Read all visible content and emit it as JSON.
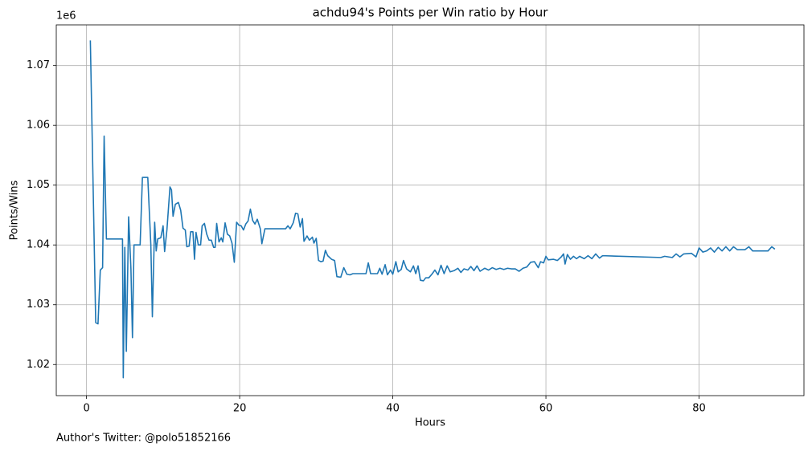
{
  "chart_data": {
    "type": "line",
    "title": "achdu94's Points per Win ratio by Hour",
    "x_label": "Hours",
    "y_label": "Points/Wins",
    "y_offset_label": "1e6",
    "footer": "Author's Twitter: @polo51852166",
    "grid": true,
    "xlim": [
      -3.95,
      93.7
    ],
    "ylim": [
      1.0148,
      1.0768
    ],
    "xticks": [
      0,
      20,
      40,
      60,
      80
    ],
    "yticks": [
      1.02,
      1.03,
      1.04,
      1.05,
      1.06,
      1.07
    ],
    "x": [
      0.5,
      1.2,
      1.5,
      1.8,
      2.1,
      2.3,
      2.6,
      3.0,
      4.7,
      4.8,
      5.0,
      5.2,
      5.5,
      5.8,
      6.0,
      6.2,
      7.0,
      7.3,
      8.0,
      8.4,
      8.6,
      8.9,
      9.1,
      9.3,
      9.7,
      10.0,
      10.2,
      10.5,
      10.9,
      11.1,
      11.3,
      11.6,
      12.0,
      12.3,
      12.6,
      12.9,
      13.1,
      13.4,
      13.6,
      13.9,
      14.1,
      14.3,
      14.6,
      14.9,
      15.1,
      15.4,
      15.7,
      16.0,
      16.3,
      16.6,
      16.8,
      17.0,
      17.3,
      17.6,
      17.8,
      18.1,
      18.4,
      18.7,
      19.0,
      19.3,
      19.6,
      19.9,
      20.2,
      20.5,
      20.8,
      21.1,
      21.4,
      21.7,
      22.0,
      22.3,
      22.7,
      22.9,
      23.3,
      24.0,
      26.0,
      26.3,
      26.6,
      27.0,
      27.3,
      27.6,
      27.9,
      28.2,
      28.4,
      28.8,
      29.1,
      29.5,
      29.7,
      30.0,
      30.3,
      30.6,
      30.9,
      31.2,
      31.5,
      32.0,
      32.4,
      32.7,
      33.2,
      33.6,
      34.0,
      34.4,
      34.8,
      36.5,
      36.8,
      37.1,
      38.0,
      38.3,
      38.6,
      39.0,
      39.3,
      39.7,
      40.0,
      40.4,
      40.7,
      41.1,
      41.4,
      41.8,
      42.3,
      42.7,
      43.0,
      43.3,
      43.6,
      44.0,
      44.3,
      44.7,
      45.1,
      45.5,
      45.9,
      46.3,
      46.7,
      47.1,
      47.5,
      48.0,
      48.5,
      48.9,
      49.3,
      49.8,
      50.2,
      50.6,
      51.0,
      51.4,
      52.0,
      52.5,
      53.0,
      53.5,
      54.0,
      54.5,
      55.0,
      55.5,
      56.0,
      56.5,
      57.0,
      57.5,
      58.0,
      58.5,
      59.0,
      59.3,
      59.7,
      60.0,
      60.3,
      61.0,
      61.5,
      62.0,
      62.3,
      62.5,
      62.8,
      63.2,
      63.6,
      64.0,
      64.4,
      65.0,
      65.5,
      66.0,
      66.5,
      67.0,
      67.4,
      75.0,
      75.5,
      76.5,
      77.0,
      77.5,
      78.0,
      79.0,
      79.6,
      80.0,
      80.5,
      81.0,
      81.5,
      82.0,
      82.5,
      83.0,
      83.5,
      84.0,
      84.5,
      85.0,
      86.0,
      86.5,
      87.0,
      88.0,
      89.0,
      89.5,
      89.9
    ],
    "series": [
      {
        "color": "#1f77b4",
        "values": [
          1.0742,
          1.027,
          1.0268,
          1.0358,
          1.0362,
          1.0582,
          1.041,
          1.041,
          1.041,
          1.0178,
          1.0396,
          1.0222,
          1.0447,
          1.036,
          1.0245,
          1.04,
          1.04,
          1.0513,
          1.0513,
          1.04,
          1.028,
          1.0438,
          1.039,
          1.041,
          1.0412,
          1.0432,
          1.0389,
          1.0425,
          1.0497,
          1.0492,
          1.0448,
          1.0468,
          1.0471,
          1.0458,
          1.0428,
          1.0425,
          1.0397,
          1.0398,
          1.0422,
          1.0422,
          1.0376,
          1.0421,
          1.04,
          1.04,
          1.0432,
          1.0436,
          1.0418,
          1.0408,
          1.0408,
          1.0396,
          1.0396,
          1.0436,
          1.0405,
          1.0412,
          1.0405,
          1.0437,
          1.0418,
          1.0415,
          1.0403,
          1.0371,
          1.0438,
          1.0433,
          1.0432,
          1.0425,
          1.0435,
          1.044,
          1.046,
          1.0441,
          1.0435,
          1.0443,
          1.0427,
          1.0402,
          1.0427,
          1.0427,
          1.0427,
          1.0432,
          1.0427,
          1.0437,
          1.0453,
          1.0452,
          1.043,
          1.0444,
          1.0406,
          1.0415,
          1.0408,
          1.0413,
          1.0403,
          1.0411,
          1.0374,
          1.0372,
          1.0373,
          1.0391,
          1.0382,
          1.0376,
          1.0374,
          1.0347,
          1.0346,
          1.0362,
          1.0351,
          1.035,
          1.0352,
          1.0352,
          1.037,
          1.0352,
          1.0352,
          1.0361,
          1.0351,
          1.0367,
          1.035,
          1.0358,
          1.0351,
          1.0372,
          1.0355,
          1.0359,
          1.0374,
          1.036,
          1.0355,
          1.0365,
          1.0352,
          1.0365,
          1.0341,
          1.034,
          1.0345,
          1.0345,
          1.0351,
          1.0358,
          1.035,
          1.0366,
          1.0352,
          1.0365,
          1.0355,
          1.0357,
          1.0361,
          1.0354,
          1.036,
          1.0358,
          1.0364,
          1.0357,
          1.0365,
          1.0356,
          1.0361,
          1.0358,
          1.0362,
          1.0359,
          1.0361,
          1.0359,
          1.0361,
          1.036,
          1.036,
          1.0356,
          1.0361,
          1.0363,
          1.0371,
          1.0372,
          1.0362,
          1.0372,
          1.037,
          1.0381,
          1.0375,
          1.0376,
          1.0374,
          1.038,
          1.0385,
          1.0368,
          1.0384,
          1.0376,
          1.0381,
          1.0377,
          1.0381,
          1.0377,
          1.0382,
          1.0377,
          1.0385,
          1.0378,
          1.0382,
          1.0379,
          1.0381,
          1.0379,
          1.0385,
          1.038,
          1.0385,
          1.0386,
          1.038,
          1.0395,
          1.0388,
          1.039,
          1.0395,
          1.0388,
          1.0396,
          1.039,
          1.0397,
          1.039,
          1.0397,
          1.0392,
          1.0392,
          1.0397,
          1.039,
          1.039,
          1.039,
          1.0397,
          1.0393
        ]
      }
    ]
  }
}
